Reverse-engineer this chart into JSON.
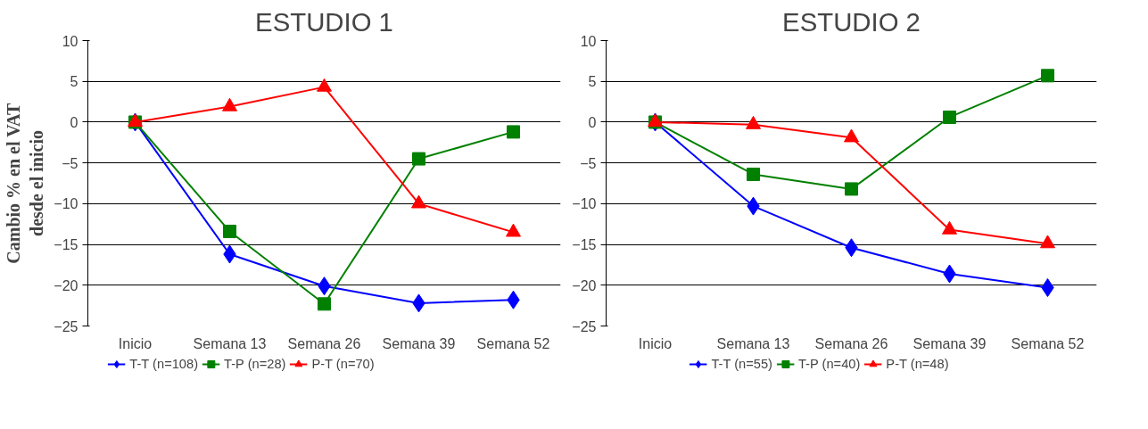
{
  "chart_data": [
    {
      "type": "line",
      "title": "ESTUDIO 1",
      "ylabel": "Cambio % en el VAT desde el inicio",
      "categories": [
        "Inicio",
        "Semana 13",
        "Semana 26",
        "Semana 39",
        "Semana 52"
      ],
      "ylim": [
        -25,
        10
      ],
      "yticks": [
        -25,
        -20,
        -15,
        -10,
        -5,
        0,
        5,
        10
      ],
      "grid": "y",
      "legend": "bottom",
      "series": [
        {
          "name": "T-T (n=108)",
          "color": "#0000ff",
          "marker": "diamond",
          "values": [
            0,
            -16.2,
            -20.1,
            -22.2,
            -21.8
          ]
        },
        {
          "name": "T-P (n=28)",
          "color": "#008000",
          "marker": "square",
          "values": [
            0,
            -13.4,
            -22.3,
            -4.5,
            -1.2
          ]
        },
        {
          "name": "P-T (n=70)",
          "color": "#ff0000",
          "marker": "triangle",
          "values": [
            0,
            1.9,
            4.3,
            -10,
            -13.5
          ]
        }
      ]
    },
    {
      "type": "line",
      "title": "ESTUDIO 2",
      "categories": [
        "Inicio",
        "Semana 13",
        "Semana 26",
        "Semana 39",
        "Semana 52"
      ],
      "ylim": [
        -25,
        10
      ],
      "yticks": [
        -25,
        -20,
        -15,
        -10,
        -5,
        0,
        5,
        10
      ],
      "grid": "y",
      "legend": "bottom",
      "series": [
        {
          "name": "T-T (n=55)",
          "color": "#0000ff",
          "marker": "diamond",
          "values": [
            0,
            -10.3,
            -15.4,
            -18.6,
            -20.3
          ]
        },
        {
          "name": "T-P (n=40)",
          "color": "#008000",
          "marker": "square",
          "values": [
            0,
            -6.4,
            -8.2,
            0.6,
            5.7
          ]
        },
        {
          "name": "P-T (n=48)",
          "color": "#ff0000",
          "marker": "triangle",
          "values": [
            0,
            -0.3,
            -1.9,
            -13.2,
            -14.9
          ]
        }
      ]
    }
  ]
}
